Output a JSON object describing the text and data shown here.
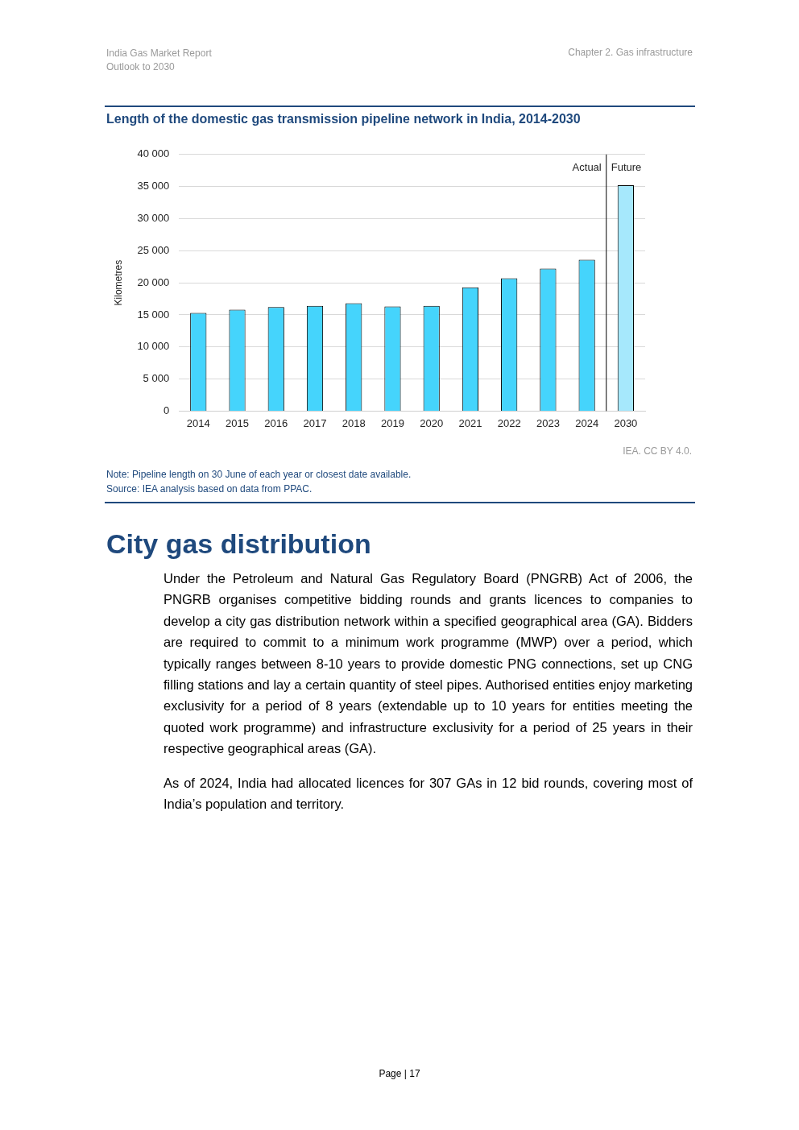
{
  "chart_data": {
    "type": "bar",
    "title": "Length of the domestic gas transmission pipeline network in India, 2014-2030",
    "ylabel": "Kilometres",
    "categories": [
      "2014",
      "2015",
      "2016",
      "2017",
      "2018",
      "2019",
      "2020",
      "2021",
      "2022",
      "2023",
      "2024",
      "2030"
    ],
    "values": [
      15300,
      15800,
      16200,
      16400,
      16800,
      16300,
      16400,
      19300,
      20700,
      22200,
      23600,
      35200
    ],
    "colors": [
      "#45d4fc",
      "#45d4fc",
      "#45d4fc",
      "#45d4fc",
      "#45d4fc",
      "#45d4fc",
      "#45d4fc",
      "#45d4fc",
      "#45d4fc",
      "#45d4fc",
      "#45d4fc",
      "#a6e8fc"
    ],
    "ylim": [
      0,
      40000
    ],
    "yticks": [
      {
        "value": 0,
        "label": "0"
      },
      {
        "value": 5000,
        "label": "5 000"
      },
      {
        "value": 10000,
        "label": "10 000"
      },
      {
        "value": 15000,
        "label": "15 000"
      },
      {
        "value": 20000,
        "label": "20 000"
      },
      {
        "value": 25000,
        "label": "25 000"
      },
      {
        "value": 30000,
        "label": "30 000"
      },
      {
        "value": 35000,
        "label": "35 000"
      },
      {
        "value": 40000,
        "label": "40 000"
      }
    ],
    "grid": "y",
    "legend": false,
    "ref_lines": [
      {
        "axis": "x",
        "value": "2030",
        "color": "#000000"
      }
    ],
    "annotations": [
      "India Gas Market Report",
      "Outlook to 2030",
      "Chapter 2. Gas infrastructure",
      "Actual",
      "Future",
      "IEA. CC BY 4.0.",
      "Note: Pipeline length on 30 June of each year or closest date available.",
      "Source: IEA analysis based on data from PPAC.",
      "City gas distribution",
      "Under the Petroleum and Natural Gas Regulatory Board (PNGRB) Act of 2006, the PNGRB organises competitive bidding rounds and grants licences to companies to develop a city gas distribution network within a specified geographical area (GA). Bidders are required to commit to a minimum work programme (MWP) over a period, which typically ranges between 8-10 years to provide domestic PNG connections, set up CNG filling stations and lay a certain quantity of steel pipes. Authorised entities enjoy marketing exclusivity for a period of 8 years (extendable up to 10 years for entities meeting the quoted work programme) and infrastructure exclusivity for a period of 25 years in their respective geographical areas (GA).",
      "As of 2024, India had allocated licences for 307 GAs in 12 bid rounds, covering most of India’s population and territory.",
      "Page | 17"
    ]
  }
}
